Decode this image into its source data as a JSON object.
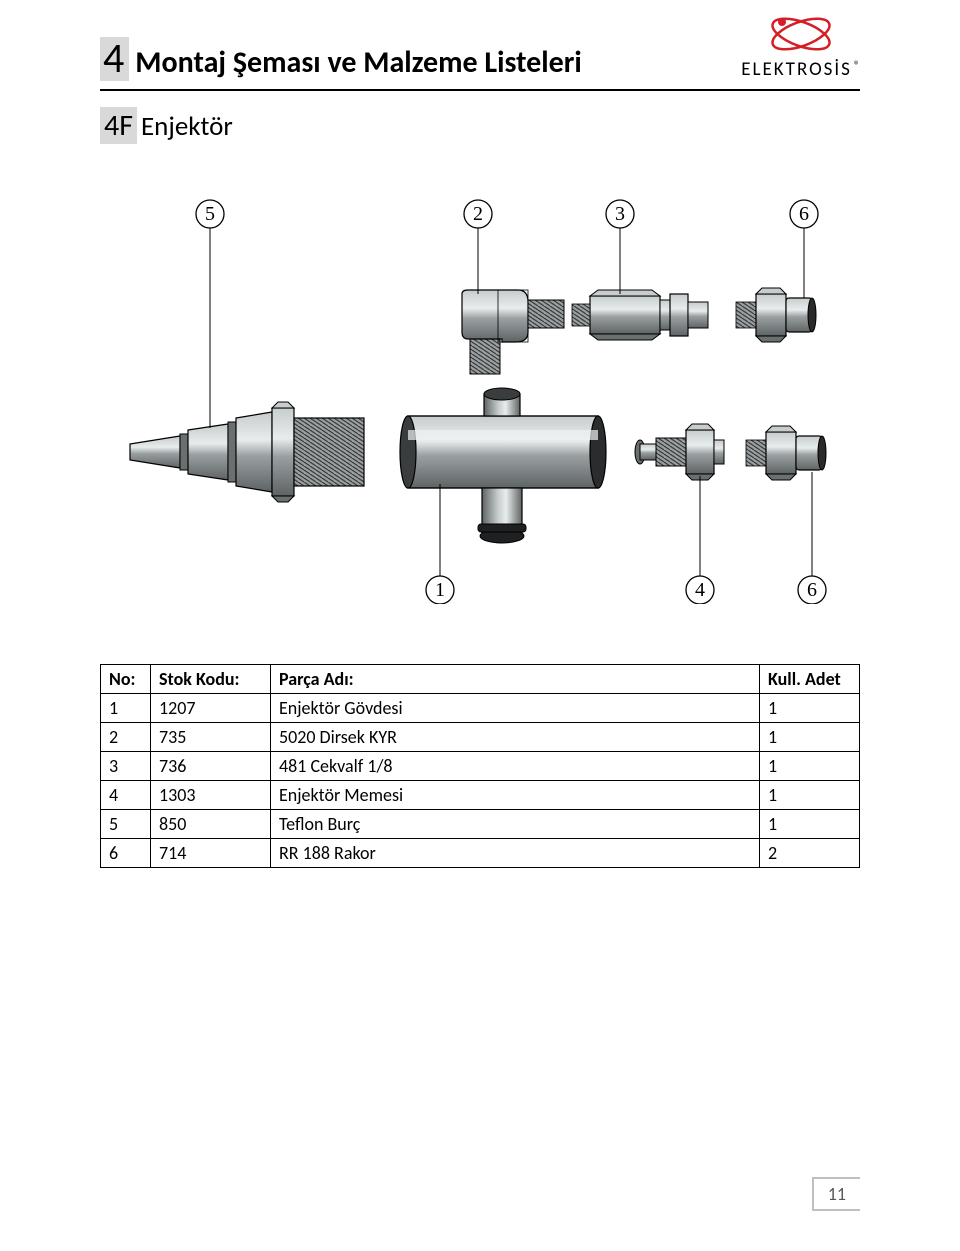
{
  "header": {
    "section_number": "4",
    "section_title": "Montaj Şeması ve Malzeme Listeleri",
    "brand": "ELEKTROSİS"
  },
  "sub": {
    "number": "4F",
    "title": "Enjektör"
  },
  "callouts": {
    "top": [
      "5",
      "2",
      "3",
      "6"
    ],
    "bottom": [
      "1",
      "4",
      "6"
    ]
  },
  "table": {
    "headers": {
      "no": "No:",
      "code": "Stok Kodu:",
      "name": "Parça Adı:",
      "qty": "Kull. Adet"
    },
    "rows": [
      {
        "no": "1",
        "code": "1207",
        "name": "Enjektör Gövdesi",
        "qty": "1"
      },
      {
        "no": "2",
        "code": "735",
        "name": "5020 Dirsek KYR",
        "qty": "1"
      },
      {
        "no": "3",
        "code": "736",
        "name": "481 Cekvalf 1/8",
        "qty": "1"
      },
      {
        "no": "4",
        "code": "1303",
        "name": "Enjektör Memesi",
        "qty": "1"
      },
      {
        "no": "5",
        "code": "850",
        "name": "Teflon Burç",
        "qty": "1"
      },
      {
        "no": "6",
        "code": "714",
        "name": "RR 188 Rakor",
        "qty": "2"
      }
    ]
  },
  "page_number": "11",
  "colors": {
    "part_fill": "#9aa0a2",
    "part_hi": "#c7cccd",
    "part_dark": "#5e6364",
    "thread": "#4a4a4a",
    "red": "#d41f26"
  }
}
